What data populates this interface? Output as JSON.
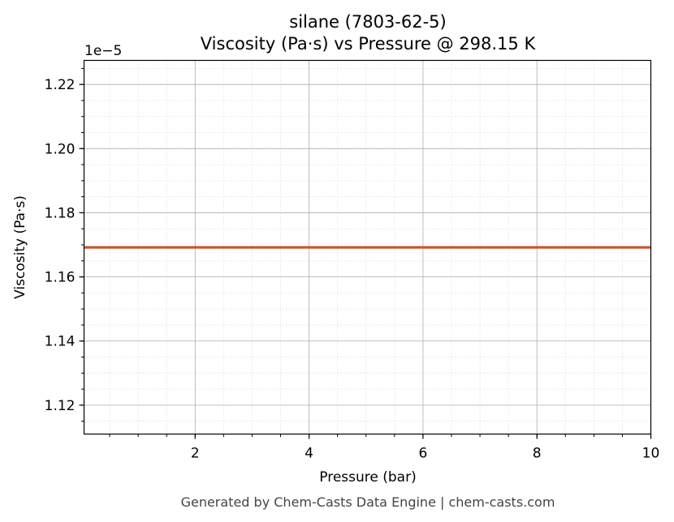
{
  "chart_data": {
    "type": "line",
    "title_line1": "silane (7803-62-5)",
    "title_line2": "Viscosity (Pa·s) vs Pressure @ 298.15 K",
    "xlabel": "Pressure (bar)",
    "ylabel": "Viscosity (Pa·s)",
    "y_offset_label": "1e−5",
    "xlim": [
      0.05,
      10
    ],
    "ylim": [
      1.111,
      1.2275
    ],
    "x_ticks": [
      2,
      4,
      6,
      8,
      10
    ],
    "x_tick_labels": [
      "2",
      "4",
      "6",
      "8",
      "10"
    ],
    "y_ticks": [
      1.12,
      1.14,
      1.16,
      1.18,
      1.2,
      1.22
    ],
    "y_tick_labels": [
      "1.12",
      "1.14",
      "1.16",
      "1.18",
      "1.20",
      "1.22"
    ],
    "grid": true,
    "series": [
      {
        "color": "#c8552b",
        "x": [
          0.05,
          1,
          2,
          3,
          4,
          5,
          6,
          7,
          8,
          9,
          10
        ],
        "y": [
          1.1692,
          1.1692,
          1.1692,
          1.1692,
          1.1692,
          1.1692,
          1.1692,
          1.1692,
          1.1692,
          1.1692,
          1.1692
        ]
      }
    ]
  },
  "footer": "Generated by Chem-Casts Data Engine | chem-casts.com"
}
